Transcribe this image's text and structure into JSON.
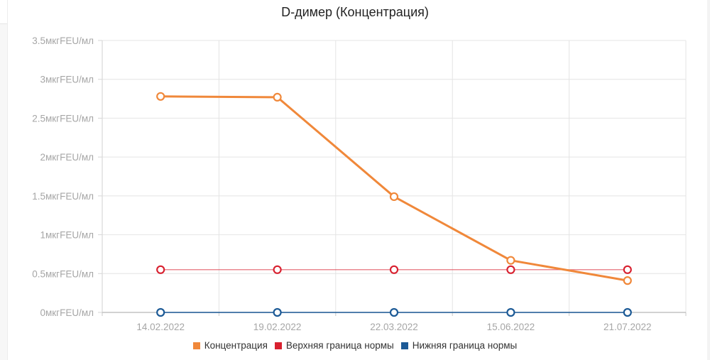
{
  "chart_data": {
    "type": "line",
    "title": "D-димер (Концентрация)",
    "xlabel": "",
    "ylabel": "",
    "categories": [
      "14.02.2022",
      "19.02.2022",
      "22.03.2022",
      "15.06.2022",
      "21.07.2022"
    ],
    "series": [
      {
        "name": "Концентрация",
        "color": "#f0883a",
        "values": [
          2.78,
          2.77,
          1.49,
          0.67,
          0.41
        ]
      },
      {
        "name": "Верхняя граница нормы",
        "color": "#d8202f",
        "values": [
          0.55,
          0.55,
          0.55,
          0.55,
          0.55
        ]
      },
      {
        "name": "Нижняя граница нормы",
        "color": "#1c5a96",
        "values": [
          0,
          0,
          0,
          0,
          0
        ]
      }
    ],
    "ylim": [
      0,
      3.5
    ],
    "yticks": [
      0,
      0.5,
      1,
      1.5,
      2,
      2.5,
      3,
      3.5
    ],
    "ytick_labels": [
      "0мкгFEU/мл",
      "0.5мкгFEU/мл",
      "1мкгFEU/мл",
      "1.5мкгFEU/мл",
      "2мкгFEU/мл",
      "2.5мкгFEU/мл",
      "3мкгFEU/мл",
      "3.5мкгFEU/мл"
    ],
    "grid": true,
    "legend_position": "bottom"
  },
  "title": "D-димер (Концентрация)",
  "legend": [
    {
      "label": "Концентрация",
      "color": "#f0883a"
    },
    {
      "label": "Верхняя граница нормы",
      "color": "#d8202f"
    },
    {
      "label": "Нижняя граница нормы",
      "color": "#1c5a96"
    }
  ]
}
